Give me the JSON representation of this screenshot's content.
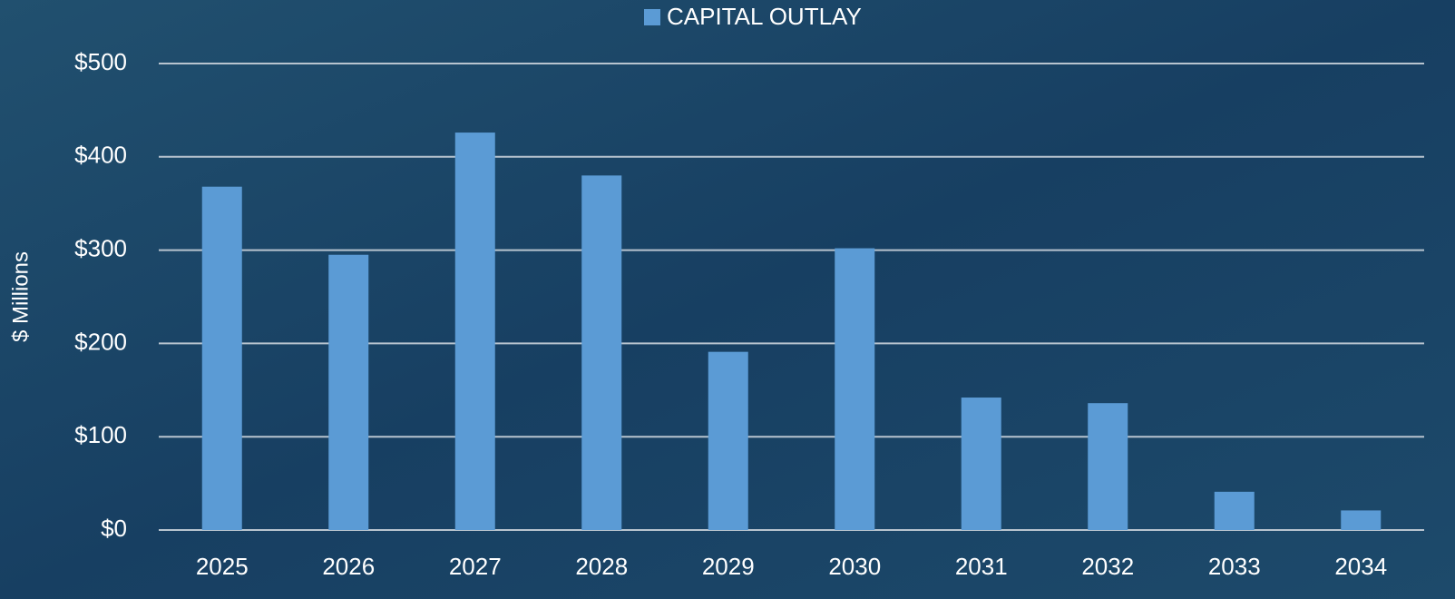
{
  "chart_data": {
    "type": "bar",
    "legend": "CAPITAL OUTLAY",
    "y_label": "$ Millions",
    "categories": [
      "2025",
      "2026",
      "2027",
      "2028",
      "2029",
      "2030",
      "2031",
      "2032",
      "2033",
      "2034"
    ],
    "values": [
      368,
      295,
      426,
      380,
      191,
      302,
      142,
      136,
      41,
      21
    ],
    "color": "#5b9bd5",
    "ylim": [
      0,
      500
    ],
    "yticks": [
      {
        "value": 0,
        "label": "$0"
      },
      {
        "value": 100,
        "label": "$100"
      },
      {
        "value": 200,
        "label": "$200"
      },
      {
        "value": 300,
        "label": "$300"
      },
      {
        "value": 400,
        "label": "$400"
      },
      {
        "value": 500,
        "label": "$500"
      }
    ],
    "grid": true
  }
}
